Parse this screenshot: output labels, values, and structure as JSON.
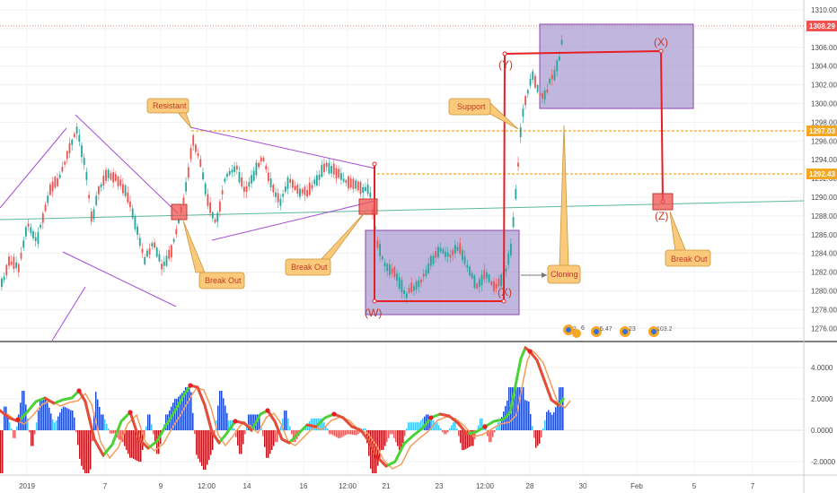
{
  "colors": {
    "bull": "#26a69a",
    "bear": "#ef5350",
    "channel": "#a64dd6",
    "box_fill": "#8e7cc3",
    "wave": "#e61e25",
    "orange_line": "#f5a623",
    "teal_line": "#5cb89c",
    "callout_fill": "#fbc97a",
    "callout_stroke": "#c9953b",
    "price_tag": "#ef5350"
  },
  "price_axis": {
    "ticks": [
      "1310.00",
      "1308.00",
      "1306.00",
      "1304.00",
      "1302.00",
      "1300.00",
      "1298.00",
      "1296.00",
      "1294.00",
      "1292.00",
      "1290.00",
      "1288.00",
      "1286.00",
      "1284.00",
      "1282.00",
      "1280.00",
      "1278.00",
      "1276.00"
    ],
    "current_price": "1308.29",
    "level_a": "1297.03",
    "level_b": "1292.43"
  },
  "osc_axis": {
    "ticks": [
      "4.0000",
      "2.0000",
      "0.0000",
      "-2.0000"
    ]
  },
  "time_axis": {
    "ticks": [
      "2019",
      "7",
      "9",
      "12:00",
      "14",
      "16",
      "12:00",
      "21",
      "23",
      "12:00",
      "28",
      "30",
      "Feb",
      "5",
      "7"
    ]
  },
  "callouts": {
    "resistant": "Resistant",
    "break_out_1": "Break Out",
    "break_out_2": "Break Out",
    "support": "Support",
    "cloning": "Cloning",
    "break_out_3": "Break Out"
  },
  "wave_labels": {
    "w": "(W)",
    "x_low": "(X)",
    "y": "(Y)",
    "x_high": "(X)",
    "z": "(Z)"
  },
  "event_badges": [
    "2",
    "6",
    "5.47",
    "23",
    "103.2"
  ],
  "chart_data": {
    "type": "candlestick",
    "ylim": [
      1275,
      1311
    ],
    "levels": [
      1308.29,
      1297.03,
      1292.43
    ],
    "oscillator_ylim": [
      -2.5,
      5
    ]
  }
}
